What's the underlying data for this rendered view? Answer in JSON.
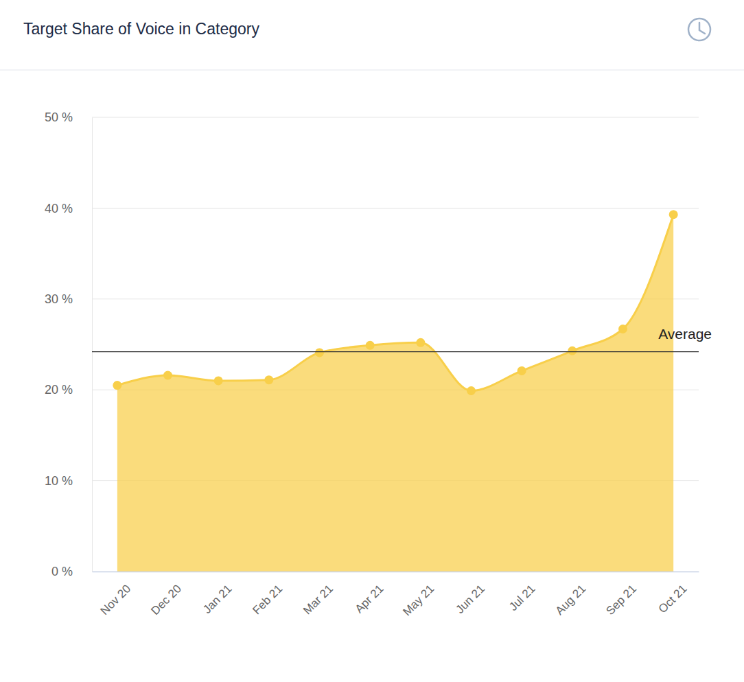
{
  "chart_data": {
    "type": "area",
    "title": "Target Share of Voice in Category",
    "categories": [
      "Nov 20",
      "Dec 20",
      "Jan 21",
      "Feb 21",
      "Mar 21",
      "Apr 21",
      "May 21",
      "Jun 21",
      "Jul 21",
      "Aug 21",
      "Sep 21",
      "Oct 21"
    ],
    "values": [
      20.5,
      21.6,
      21.0,
      21.1,
      24.1,
      24.9,
      25.2,
      19.9,
      22.1,
      24.3,
      26.7,
      39.3
    ],
    "color": "#f8cf4a",
    "marker": "circle",
    "ylim": [
      0,
      50
    ],
    "yticks": [
      {
        "value": 0,
        "label": "0 %"
      },
      {
        "value": 10,
        "label": "10 %"
      },
      {
        "value": 20,
        "label": "20 %"
      },
      {
        "value": 30,
        "label": "30 %"
      },
      {
        "value": 40,
        "label": "40 %"
      },
      {
        "value": 50,
        "label": "50 %"
      }
    ],
    "grid": true,
    "reference_line": {
      "label": "Average",
      "value": 24.2
    }
  }
}
